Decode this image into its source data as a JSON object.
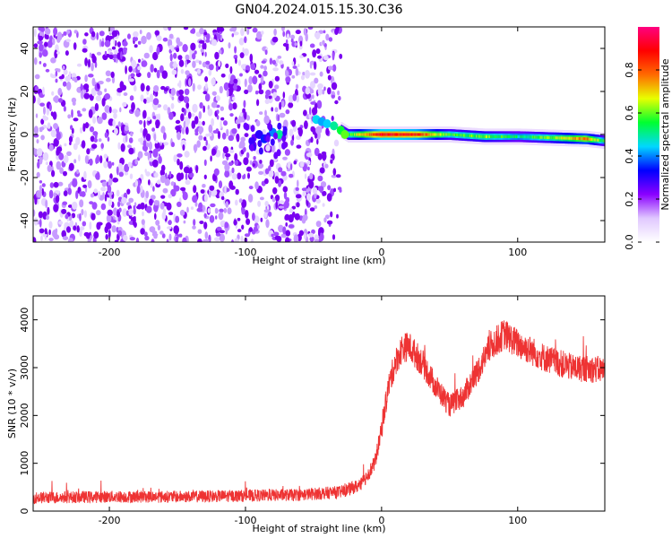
{
  "title": "GN04.2024.015.15.30.C36",
  "chart_data": [
    {
      "type": "heatmap",
      "description_of_content": null,
      "xlabel": "Height of straight line (km)",
      "ylabel": "Frequency (Hz)",
      "xlim": [
        -256,
        164
      ],
      "ylim": [
        -50,
        50
      ],
      "x_ticks": [
        -200,
        -100,
        0,
        100
      ],
      "y_ticks": [
        -40,
        -20,
        0,
        20,
        40
      ],
      "grid": false,
      "colorbar": {
        "label": "Normalized spectral amplitude",
        "range": [
          0,
          1
        ],
        "ticks": [
          "0.0",
          "0.2",
          "0.4",
          "0.6",
          "0.8"
        ],
        "colors": [
          "#ffffff",
          "#e0c8ff",
          "#8a00ff",
          "#0000ff",
          "#00d8ff",
          "#00ff30",
          "#e8ff00",
          "#ff6a00",
          "#ff0000",
          "#ff0080"
        ]
      },
      "noise_region_x": [
        -256,
        -30
      ],
      "signal_track": {
        "x": [
          -100,
          -80,
          -50,
          -35,
          -25,
          0,
          25,
          50,
          75,
          100,
          125,
          150,
          164
        ],
        "freq": [
          -2,
          0,
          7,
          4,
          0,
          0,
          0,
          0,
          -1,
          -1,
          -1.5,
          -2,
          -3
        ],
        "amplitude": [
          0.25,
          0.4,
          0.45,
          0.5,
          0.55,
          0.9,
          0.85,
          0.55,
          0.6,
          0.5,
          0.6,
          0.75,
          0.5
        ]
      }
    },
    {
      "type": "line",
      "xlabel": "Height of straight line (km)",
      "ylabel": "SNR (10 * v/v)",
      "xlim": [
        -256,
        164
      ],
      "ylim": [
        0,
        4500
      ],
      "x_ticks": [
        -200,
        -100,
        0,
        100
      ],
      "y_ticks": [
        0,
        1000,
        2000,
        3000,
        4000
      ],
      "grid": false,
      "series": [
        {
          "color": "#ee3333",
          "x": [
            -256,
            -200,
            -150,
            -100,
            -60,
            -30,
            -15,
            -5,
            0,
            5,
            10,
            15,
            20,
            30,
            40,
            50,
            60,
            70,
            80,
            90,
            100,
            120,
            140,
            164
          ],
          "values": [
            280,
            300,
            300,
            320,
            340,
            400,
            550,
            1000,
            1700,
            2600,
            3100,
            3400,
            3450,
            3100,
            2600,
            2200,
            2400,
            2900,
            3450,
            3700,
            3500,
            3200,
            3000,
            2950
          ],
          "noise_amplitude": 180
        }
      ]
    }
  ]
}
